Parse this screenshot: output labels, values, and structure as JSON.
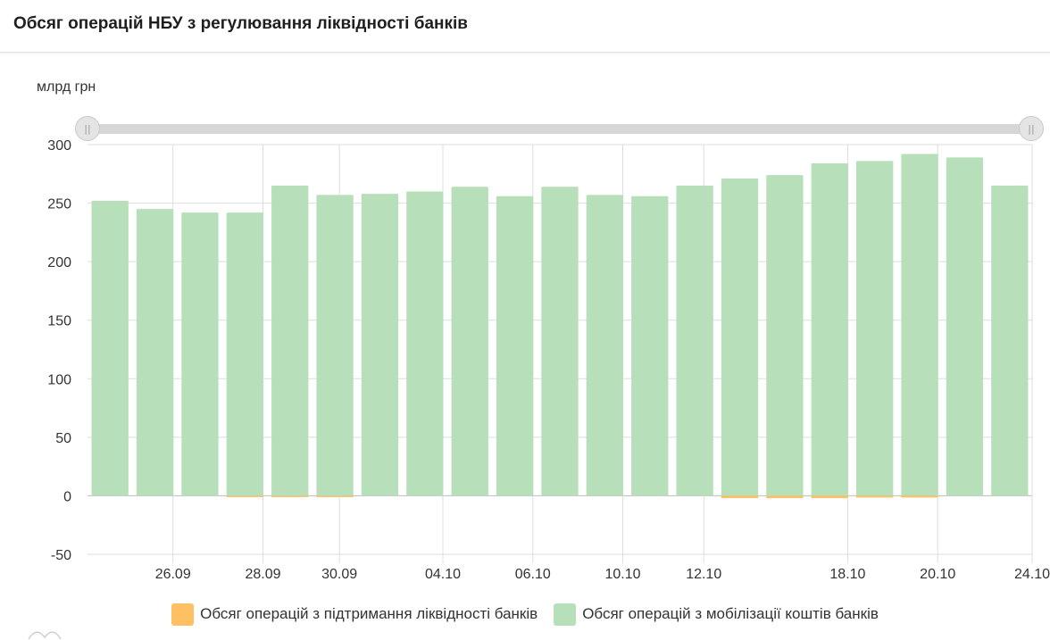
{
  "header": {
    "title": "Обсяг операцій НБУ з регулювання ліквідності банків"
  },
  "range_slider": {
    "left_handle_icon": "grip-icon",
    "right_handle_icon": "grip-icon"
  },
  "colors": {
    "mobilization": "#b7dfb9",
    "support": "#ffc064",
    "grid": "#dddddd"
  },
  "chart_data": {
    "type": "bar",
    "ylabel": "млрд грн",
    "ylim": [
      -50,
      300
    ],
    "yticks": [
      -50,
      0,
      50,
      100,
      150,
      200,
      250,
      300
    ],
    "x_tick_labels": [
      {
        "label": "26.09",
        "index": 1.4
      },
      {
        "label": "28.09",
        "index": 3.4
      },
      {
        "label": "30.09",
        "index": 5.1
      },
      {
        "label": "04.10",
        "index": 7.4
      },
      {
        "label": "06.10",
        "index": 9.4
      },
      {
        "label": "10.10",
        "index": 11.4
      },
      {
        "label": "12.10",
        "index": 13.2
      },
      {
        "label": "18.10",
        "index": 16.4
      },
      {
        "label": "20.10",
        "index": 18.4
      },
      {
        "label": "24.10",
        "index": 20.5
      }
    ],
    "grid": true,
    "legend_position": "bottom",
    "series": [
      {
        "name": "Обсяг операцій з підтримання ліквідності банків",
        "values": [
          0,
          0,
          0,
          -0.5,
          -0.5,
          -0.5,
          0,
          0,
          0,
          0,
          0,
          0,
          0,
          0,
          -2,
          -2,
          -2,
          -1.5,
          -1.5,
          0,
          0
        ]
      },
      {
        "name": "Обсяг операцій з мобілізації коштів банків",
        "values": [
          252,
          245,
          242,
          242,
          265,
          257,
          258,
          260,
          264,
          256,
          264,
          257,
          256,
          265,
          271,
          274,
          284,
          286,
          292,
          289,
          265
        ]
      }
    ]
  }
}
